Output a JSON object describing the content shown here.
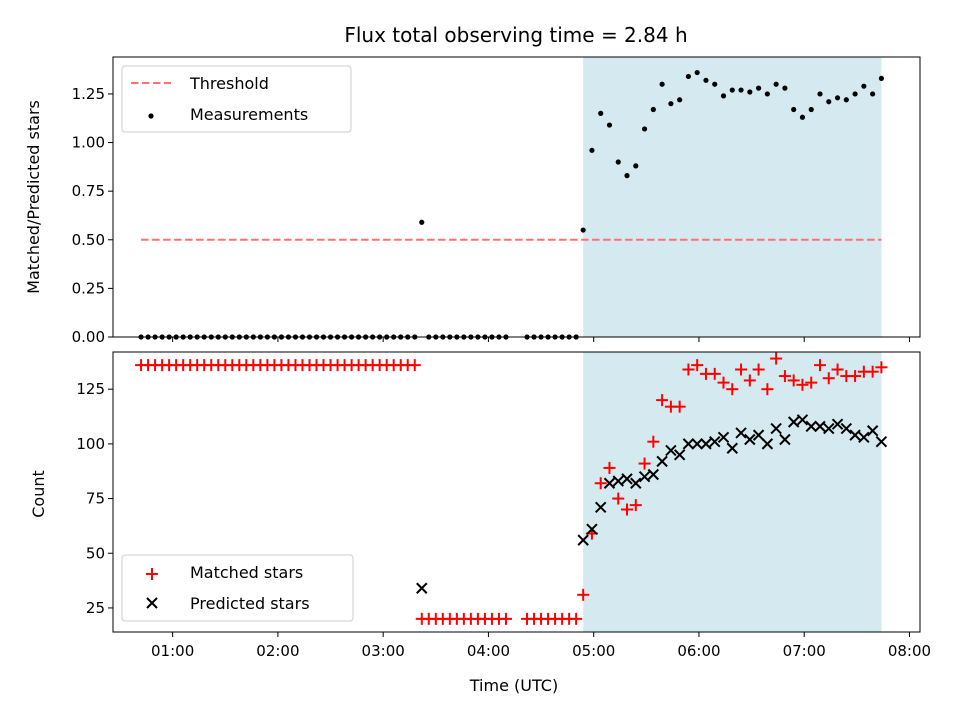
{
  "chart_data": [
    {
      "type": "scatter",
      "title": "Flux total observing time = 2.84 h",
      "xlabel": "",
      "ylabel": "Matched/Predicted stars",
      "xlim": [
        "00:26",
        "08:06"
      ],
      "ylim": [
        0,
        1.44
      ],
      "yticks": [
        "0.00",
        "0.25",
        "0.50",
        "0.75",
        "1.00",
        "1.25"
      ],
      "shaded_interval": [
        "04:54",
        "07:44"
      ],
      "shade_color": "#d4eaf0",
      "legend": {
        "position": "upper-left",
        "entries": [
          "Threshold",
          "Measurements"
        ]
      },
      "series": [
        {
          "name": "Threshold",
          "kind": "dashed-line",
          "color": "#ff7070",
          "x": [
            "00:42",
            "07:44"
          ],
          "y": [
            0.5,
            0.5
          ]
        },
        {
          "name": "Measurements",
          "kind": "points",
          "color": "#000000",
          "x": [
            "00:42",
            "00:46",
            "00:50",
            "00:54",
            "00:58",
            "01:02",
            "01:06",
            "01:10",
            "01:14",
            "01:18",
            "01:22",
            "01:26",
            "01:30",
            "01:34",
            "01:38",
            "01:42",
            "01:46",
            "01:50",
            "01:54",
            "01:58",
            "02:02",
            "02:06",
            "02:10",
            "02:14",
            "02:18",
            "02:22",
            "02:26",
            "02:30",
            "02:34",
            "02:38",
            "02:42",
            "02:46",
            "02:50",
            "02:54",
            "02:58",
            "03:02",
            "03:06",
            "03:10",
            "03:14",
            "03:18",
            "03:22",
            "03:26",
            "03:30",
            "03:34",
            "03:38",
            "03:42",
            "03:46",
            "03:50",
            "03:54",
            "03:58",
            "04:02",
            "04:06",
            "04:10",
            "04:22",
            "04:26",
            "04:30",
            "04:34",
            "04:38",
            "04:42",
            "04:46",
            "04:50",
            "04:54",
            "04:59",
            "05:04",
            "05:09",
            "05:14",
            "05:19",
            "05:24",
            "05:29",
            "05:34",
            "05:39",
            "05:44",
            "05:49",
            "05:54",
            "05:59",
            "06:04",
            "06:09",
            "06:14",
            "06:19",
            "06:24",
            "06:29",
            "06:34",
            "06:39",
            "06:44",
            "06:49",
            "06:54",
            "06:59",
            "07:04",
            "07:09",
            "07:14",
            "07:19",
            "07:24",
            "07:29",
            "07:34",
            "07:39",
            "07:44"
          ],
          "y": [
            0,
            0,
            0,
            0,
            0,
            0,
            0,
            0,
            0,
            0,
            0,
            0,
            0,
            0,
            0,
            0,
            0,
            0,
            0,
            0,
            0,
            0,
            0,
            0,
            0,
            0,
            0,
            0,
            0,
            0,
            0,
            0,
            0,
            0,
            0,
            0,
            0,
            0,
            0,
            0,
            0.59,
            0,
            0,
            0,
            0,
            0,
            0,
            0,
            0,
            0,
            0,
            0,
            0,
            0,
            0,
            0,
            0,
            0,
            0,
            0,
            0,
            0.55,
            0.96,
            1.15,
            1.09,
            0.9,
            0.83,
            0.88,
            1.07,
            1.17,
            1.3,
            1.2,
            1.22,
            1.34,
            1.36,
            1.32,
            1.3,
            1.24,
            1.27,
            1.27,
            1.26,
            1.28,
            1.25,
            1.3,
            1.28,
            1.17,
            1.13,
            1.17,
            1.25,
            1.21,
            1.23,
            1.22,
            1.25,
            1.29,
            1.25,
            1.33
          ]
        }
      ]
    },
    {
      "type": "scatter",
      "title": "",
      "xlabel": "Time (UTC)",
      "ylabel": "Count",
      "xlim": [
        "00:26",
        "08:06"
      ],
      "ylim": [
        14,
        142
      ],
      "yticks": [
        "25",
        "50",
        "75",
        "100",
        "125"
      ],
      "xticks": [
        "01:00",
        "02:00",
        "03:00",
        "04:00",
        "05:00",
        "06:00",
        "07:00",
        "08:00"
      ],
      "shaded_interval": [
        "04:54",
        "07:44"
      ],
      "shade_color": "#d4eaf0",
      "legend": {
        "position": "lower-left",
        "entries": [
          "Matched stars",
          "Predicted stars"
        ]
      },
      "series": [
        {
          "name": "Matched stars",
          "kind": "plus",
          "color": "#ff0000",
          "x": [
            "00:42",
            "00:46",
            "00:50",
            "00:54",
            "00:58",
            "01:02",
            "01:06",
            "01:10",
            "01:14",
            "01:18",
            "01:22",
            "01:26",
            "01:30",
            "01:34",
            "01:38",
            "01:42",
            "01:46",
            "01:50",
            "01:54",
            "01:58",
            "02:02",
            "02:06",
            "02:10",
            "02:14",
            "02:18",
            "02:22",
            "02:26",
            "02:30",
            "02:34",
            "02:38",
            "02:42",
            "02:46",
            "02:50",
            "02:54",
            "02:58",
            "03:02",
            "03:06",
            "03:10",
            "03:14",
            "03:18",
            "03:22",
            "03:26",
            "03:30",
            "03:34",
            "03:38",
            "03:42",
            "03:46",
            "03:50",
            "03:54",
            "03:58",
            "04:02",
            "04:06",
            "04:10",
            "04:22",
            "04:26",
            "04:30",
            "04:34",
            "04:38",
            "04:42",
            "04:46",
            "04:50",
            "04:54",
            "04:59",
            "05:04",
            "05:09",
            "05:14",
            "05:19",
            "05:24",
            "05:29",
            "05:34",
            "05:39",
            "05:44",
            "05:49",
            "05:54",
            "05:59",
            "06:04",
            "06:09",
            "06:14",
            "06:19",
            "06:24",
            "06:29",
            "06:34",
            "06:39",
            "06:44",
            "06:49",
            "06:54",
            "06:59",
            "07:04",
            "07:09",
            "07:14",
            "07:19",
            "07:24",
            "07:29",
            "07:34",
            "07:39",
            "07:44"
          ],
          "y": [
            136,
            136,
            136,
            136,
            136,
            136,
            136,
            136,
            136,
            136,
            136,
            136,
            136,
            136,
            136,
            136,
            136,
            136,
            136,
            136,
            136,
            136,
            136,
            136,
            136,
            136,
            136,
            136,
            136,
            136,
            136,
            136,
            136,
            136,
            136,
            136,
            136,
            136,
            136,
            136,
            20,
            20,
            20,
            20,
            20,
            20,
            20,
            20,
            20,
            20,
            20,
            20,
            20,
            20,
            20,
            20,
            20,
            20,
            20,
            20,
            20,
            31,
            59,
            82,
            89,
            75,
            70,
            72,
            91,
            101,
            120,
            117,
            117,
            134,
            136,
            132,
            132,
            128,
            125,
            134,
            129,
            134,
            125,
            139,
            131,
            129,
            127,
            128,
            136,
            130,
            134,
            131,
            131,
            133,
            133,
            135
          ]
        },
        {
          "name": "Predicted stars",
          "kind": "cross",
          "color": "#000000",
          "x": [
            "03:22",
            "04:54",
            "04:59",
            "05:04",
            "05:09",
            "05:14",
            "05:19",
            "05:24",
            "05:29",
            "05:34",
            "05:39",
            "05:44",
            "05:49",
            "05:54",
            "05:59",
            "06:04",
            "06:09",
            "06:14",
            "06:19",
            "06:24",
            "06:29",
            "06:34",
            "06:39",
            "06:44",
            "06:49",
            "06:54",
            "06:59",
            "07:04",
            "07:09",
            "07:14",
            "07:19",
            "07:24",
            "07:29",
            "07:34",
            "07:39",
            "07:44"
          ],
          "y": [
            34,
            56,
            61,
            71,
            82,
            83,
            84,
            82,
            85,
            86,
            92,
            97,
            95,
            100,
            100,
            100,
            101,
            103,
            98,
            105,
            102,
            104,
            100,
            107,
            102,
            110,
            111,
            108,
            108,
            107,
            109,
            107,
            104,
            103,
            106,
            101
          ]
        }
      ]
    }
  ]
}
